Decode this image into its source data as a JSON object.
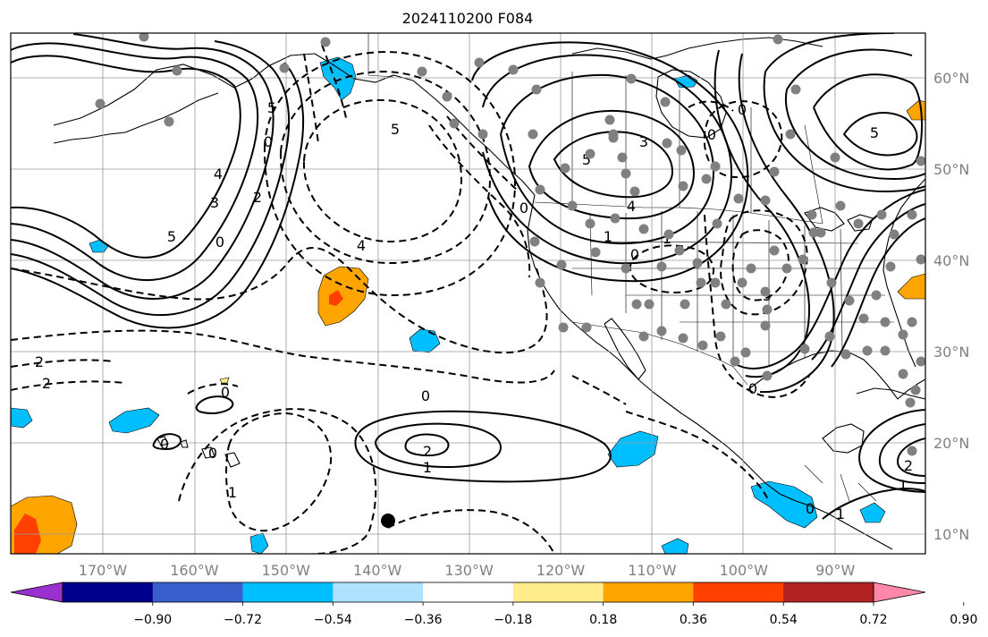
{
  "figure": {
    "title": "2024110200 F084",
    "lat_ticks": [
      {
        "deg": 60,
        "label": "60°N"
      },
      {
        "deg": 50,
        "label": "50°N"
      },
      {
        "deg": 40,
        "label": "40°N"
      },
      {
        "deg": 30,
        "label": "30°N"
      },
      {
        "deg": 20,
        "label": "20°N"
      },
      {
        "deg": 10,
        "label": "10°N"
      }
    ],
    "lon_ticks": [
      {
        "deg": -170,
        "label": "170°W"
      },
      {
        "deg": -160,
        "label": "160°W"
      },
      {
        "deg": -150,
        "label": "150°W"
      },
      {
        "deg": -140,
        "label": "140°W"
      },
      {
        "deg": -130,
        "label": "130°W"
      },
      {
        "deg": -120,
        "label": "120°W"
      },
      {
        "deg": -110,
        "label": "110°W"
      },
      {
        "deg": -100,
        "label": "100°W"
      },
      {
        "deg": -90,
        "label": "90°W"
      }
    ]
  },
  "colorbar": {
    "colors": [
      "#9b30d0",
      "#00008b",
      "#3a5fcd",
      "#00bfff",
      "#b0e2ff",
      "#ffffff",
      "#ffec8b",
      "#ffa500",
      "#ff4000",
      "#b22222",
      "#ff88aa"
    ],
    "labels": [
      "−0.90",
      "−0.72",
      "−0.54",
      "−0.36",
      "−0.18",
      "0.18",
      "0.36",
      "0.54",
      "0.72",
      "0.90"
    ]
  },
  "contour_labels": [
    {
      "text": "5"
    },
    {
      "text": "4"
    },
    {
      "text": "3"
    },
    {
      "text": "0"
    },
    {
      "text": "2"
    },
    {
      "text": "5"
    },
    {
      "text": "0"
    },
    {
      "text": "5"
    },
    {
      "text": "4"
    },
    {
      "text": "2"
    },
    {
      "text": "2"
    },
    {
      "text": "0"
    },
    {
      "text": "0"
    },
    {
      "text": "0"
    },
    {
      "text": "2"
    },
    {
      "text": "1"
    },
    {
      "text": "0"
    },
    {
      "text": "1"
    },
    {
      "text": "5"
    },
    {
      "text": "3"
    },
    {
      "text": "4"
    },
    {
      "text": "1"
    },
    {
      "text": "0"
    },
    {
      "text": "1"
    },
    {
      "text": "0"
    },
    {
      "text": "5"
    },
    {
      "text": "0"
    },
    {
      "text": "5"
    },
    {
      "text": "2"
    },
    {
      "text": "1"
    },
    {
      "text": "1"
    },
    {
      "text": "0"
    },
    {
      "text": "0"
    },
    {
      "text": "0"
    }
  ],
  "marker_colors": {
    "station": "#808080",
    "marker": "#000000"
  }
}
